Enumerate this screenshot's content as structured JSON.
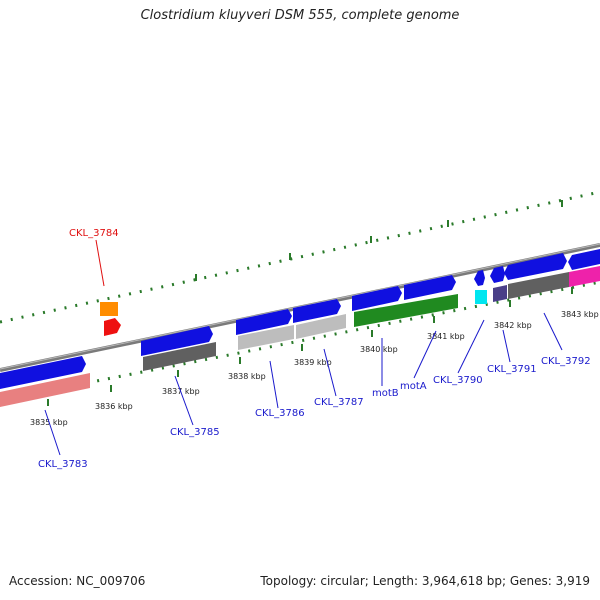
{
  "title": "Clostridium kluyveri DSM 555, complete genome",
  "footer": {
    "accession": "Accession: NC_009706",
    "topology": "Topology: circular; Length: 3,964,618 bp; Genes: 3,919"
  },
  "colors": {
    "backbone": "#8c8c8c",
    "tick": "#2a7a2a",
    "gene_label": "#1a1acc",
    "gene_label_highlight": "#e01010",
    "blue_gene": "#1010e0",
    "pink_gene": "#e88080",
    "dark_gray_gene": "#606060",
    "light_gray_gene": "#bdbdbd",
    "green_gene": "#208a20",
    "orange_gene": "#ff8c00",
    "red_gene": "#ee1010",
    "cyan_gene": "#00e6f0",
    "purple_gene": "#4a3f88",
    "magenta_gene": "#ee22aa"
  },
  "ticks": [
    "3835 kbp",
    "3836 kbp",
    "3837 kbp",
    "3838 kbp",
    "3839 kbp",
    "3840 kbp",
    "3841 kbp",
    "3842 kbp",
    "3843 kbp"
  ],
  "genes": [
    "CKL_3783",
    "CKL_3784",
    "CKL_3785",
    "CKL_3786",
    "CKL_3787",
    "motB",
    "motA",
    "CKL_3790",
    "CKL_3791",
    "CKL_3792"
  ]
}
